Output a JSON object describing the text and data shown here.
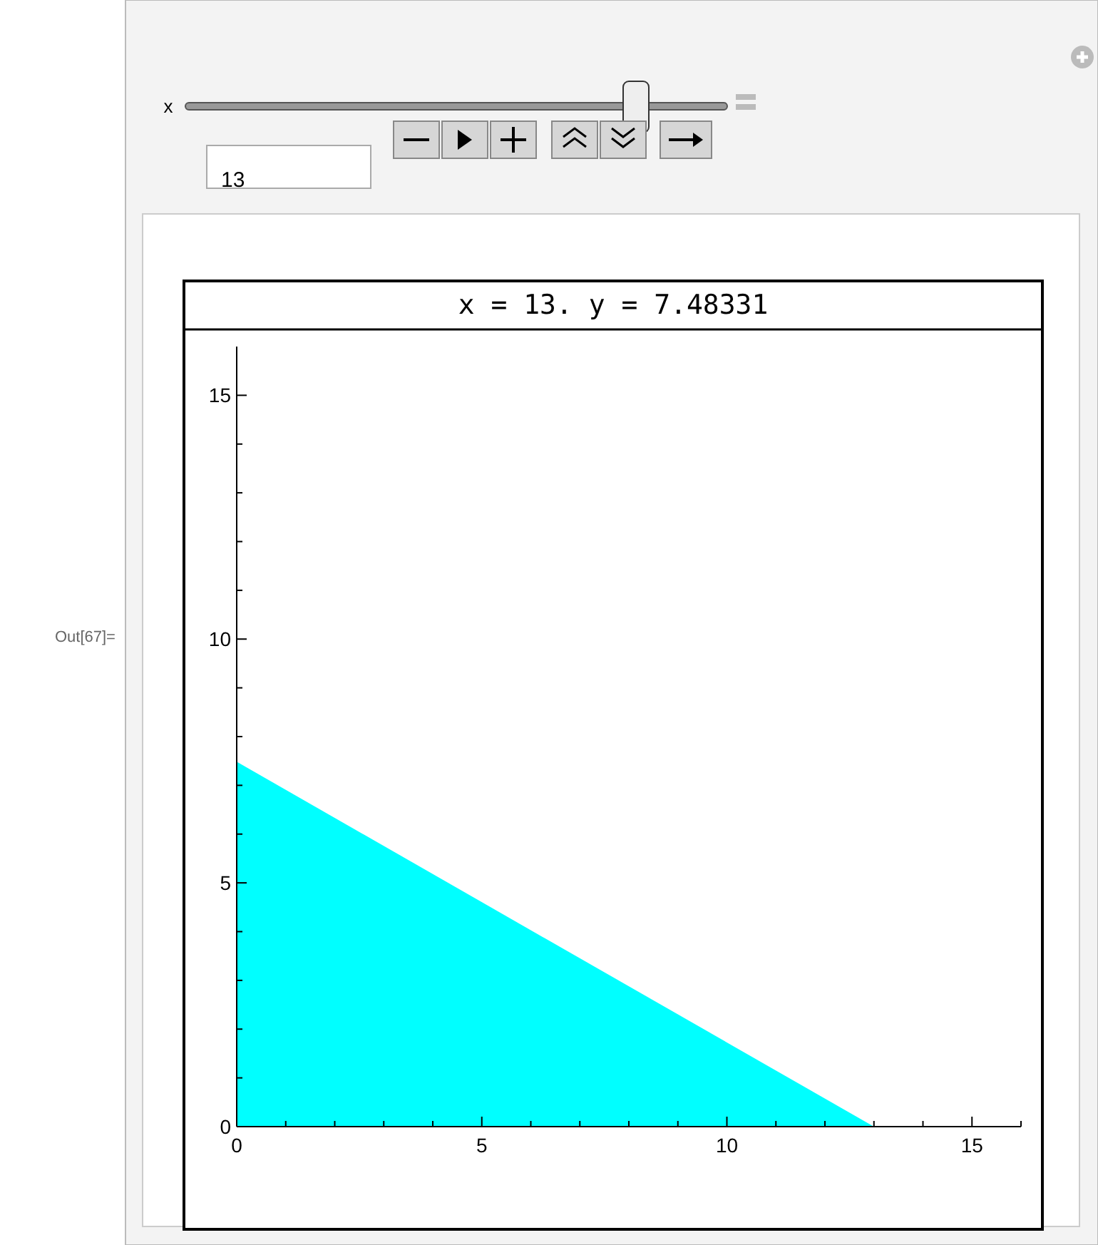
{
  "chart_data": {
    "type": "area",
    "title": "x = 13. y = 7.48331",
    "x": [
      0,
      13
    ],
    "series": [
      {
        "values": [
          7.48331,
          0
        ],
        "color": "#00ffff"
      }
    ],
    "xlim": [
      0,
      16
    ],
    "ylim": [
      0,
      16
    ],
    "xticks": [
      0,
      {
        "value": 1,
        "label": null
      },
      {
        "value": 2,
        "label": null
      },
      {
        "value": 3,
        "label": null
      },
      {
        "value": 4,
        "label": null
      },
      5,
      {
        "value": 6,
        "label": null
      },
      {
        "value": 7,
        "label": null
      },
      {
        "value": 8,
        "label": null
      },
      {
        "value": 9,
        "label": null
      },
      10,
      {
        "value": 11,
        "label": null
      },
      {
        "value": 12,
        "label": null
      },
      {
        "value": 13,
        "label": null
      },
      {
        "value": 14,
        "label": null
      },
      15,
      {
        "value": 16,
        "label": null
      }
    ],
    "yticks": [
      0,
      {
        "value": 1,
        "label": null
      },
      {
        "value": 2,
        "label": null
      },
      {
        "value": 3,
        "label": null
      },
      {
        "value": 4,
        "label": null
      },
      5,
      {
        "value": 6,
        "label": null
      },
      {
        "value": 7,
        "label": null
      },
      {
        "value": 8,
        "label": null
      },
      {
        "value": 9,
        "label": null
      },
      10,
      {
        "value": 11,
        "label": null
      },
      {
        "value": 12,
        "label": null
      },
      {
        "value": 13,
        "label": null
      },
      {
        "value": 14,
        "label": null
      },
      15
    ],
    "grid": false,
    "annotations": [
      "Out[67]=",
      "x",
      "13"
    ]
  }
}
